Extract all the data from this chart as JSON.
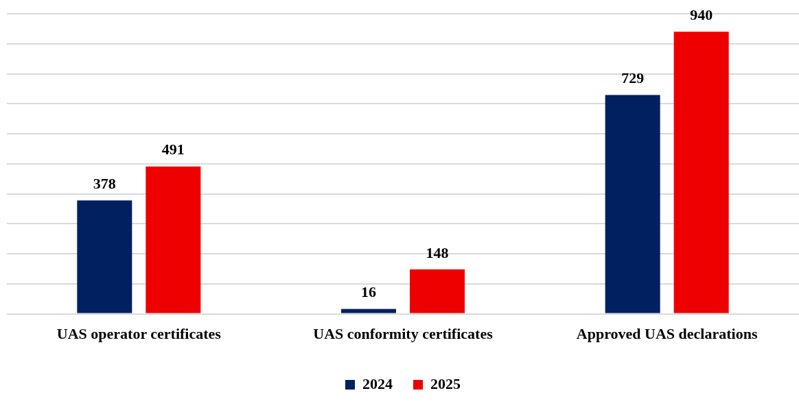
{
  "chart_data": {
    "type": "bar",
    "categories": [
      "UAS operator certificates",
      "UAS conformity certificates",
      "Approved UAS declarations"
    ],
    "series": [
      {
        "name": "2024",
        "color": "#002060",
        "values": [
          378,
          16,
          729
        ]
      },
      {
        "name": "2025",
        "color": "#ee0000",
        "values": [
          491,
          148,
          940
        ]
      }
    ],
    "ylim": [
      0,
      1000
    ],
    "yticks": [
      {
        "value": 0,
        "label": null
      },
      {
        "value": 100,
        "label": null
      },
      {
        "value": 200,
        "label": null
      },
      {
        "value": 300,
        "label": null
      },
      {
        "value": 400,
        "label": null
      },
      {
        "value": 500,
        "label": null
      },
      {
        "value": 600,
        "label": null
      },
      {
        "value": 700,
        "label": null
      },
      {
        "value": 800,
        "label": null
      },
      {
        "value": 900,
        "label": null
      },
      {
        "value": 1000,
        "label": null
      }
    ],
    "tick_labels": "x",
    "grid": "y",
    "legend": "bottom",
    "data_labels": true
  }
}
